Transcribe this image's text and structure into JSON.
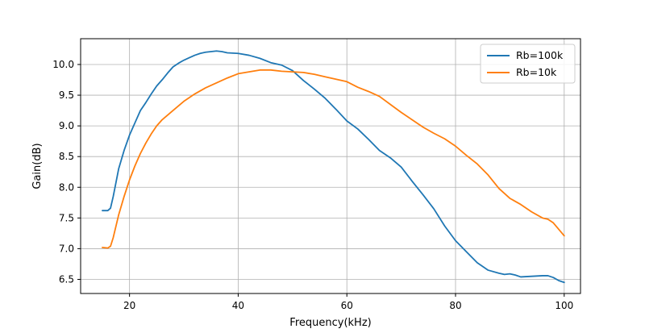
{
  "chart_data": {
    "type": "line",
    "title": "",
    "xlabel": "Frequency(kHz)",
    "ylabel": "Gain(dB)",
    "xlim": [
      11,
      103
    ],
    "ylim": [
      6.27,
      10.42
    ],
    "xticks": [
      20,
      40,
      60,
      80,
      100
    ],
    "xtick_labels": [
      "20",
      "40",
      "60",
      "80",
      "100"
    ],
    "yticks": [
      6.5,
      7.0,
      7.5,
      8.0,
      8.5,
      9.0,
      9.5,
      10.0
    ],
    "ytick_labels": [
      "6.5",
      "7.0",
      "7.5",
      "8.0",
      "8.5",
      "9.0",
      "9.5",
      "10.0"
    ],
    "grid": true,
    "legend_position": "top-right",
    "series": [
      {
        "name": "Rb=100k",
        "color": "#1f77b4",
        "x": [
          15,
          16,
          16.5,
          17,
          18,
          19,
          20,
          21,
          22,
          23,
          24,
          25,
          26,
          27,
          28,
          29,
          30,
          31,
          32,
          33,
          34,
          35,
          36,
          37,
          38,
          40,
          42,
          44,
          46,
          48,
          50,
          52,
          54,
          56,
          58,
          60,
          62,
          64,
          66,
          68,
          70,
          72,
          74,
          76,
          78,
          80,
          82,
          84,
          86,
          88,
          89,
          90,
          91,
          92,
          94,
          96,
          97,
          98,
          99,
          100
        ],
        "y": [
          7.62,
          7.62,
          7.66,
          7.85,
          8.3,
          8.6,
          8.85,
          9.05,
          9.25,
          9.38,
          9.52,
          9.65,
          9.75,
          9.86,
          9.96,
          10.02,
          10.07,
          10.11,
          10.15,
          10.18,
          10.2,
          10.21,
          10.22,
          10.21,
          10.19,
          10.18,
          10.15,
          10.1,
          10.03,
          9.99,
          9.9,
          9.74,
          9.6,
          9.45,
          9.27,
          9.08,
          8.95,
          8.78,
          8.6,
          8.48,
          8.33,
          8.1,
          7.88,
          7.65,
          7.37,
          7.13,
          6.95,
          6.77,
          6.65,
          6.6,
          6.58,
          6.59,
          6.57,
          6.54,
          6.55,
          6.56,
          6.56,
          6.53,
          6.48,
          6.45
        ]
      },
      {
        "name": "Rb=10k",
        "color": "#ff7f0e",
        "x": [
          15,
          16,
          16.5,
          17,
          18,
          19,
          20,
          21,
          22,
          23,
          24,
          25,
          26,
          28,
          30,
          32,
          34,
          36,
          38,
          40,
          42,
          44,
          46,
          48,
          50,
          52,
          54,
          56,
          58,
          60,
          62,
          64,
          66,
          68,
          70,
          72,
          74,
          76,
          78,
          80,
          82,
          84,
          86,
          88,
          90,
          92,
          94,
          96,
          97,
          98,
          100
        ],
        "y": [
          7.02,
          7.01,
          7.04,
          7.18,
          7.55,
          7.85,
          8.12,
          8.35,
          8.55,
          8.72,
          8.87,
          9.0,
          9.1,
          9.25,
          9.4,
          9.52,
          9.62,
          9.7,
          9.78,
          9.85,
          9.88,
          9.91,
          9.91,
          9.89,
          9.88,
          9.87,
          9.84,
          9.8,
          9.76,
          9.72,
          9.63,
          9.56,
          9.48,
          9.35,
          9.22,
          9.1,
          8.98,
          8.88,
          8.79,
          8.67,
          8.52,
          8.38,
          8.2,
          7.98,
          7.82,
          7.72,
          7.6,
          7.5,
          7.48,
          7.42,
          7.21
        ]
      }
    ]
  }
}
